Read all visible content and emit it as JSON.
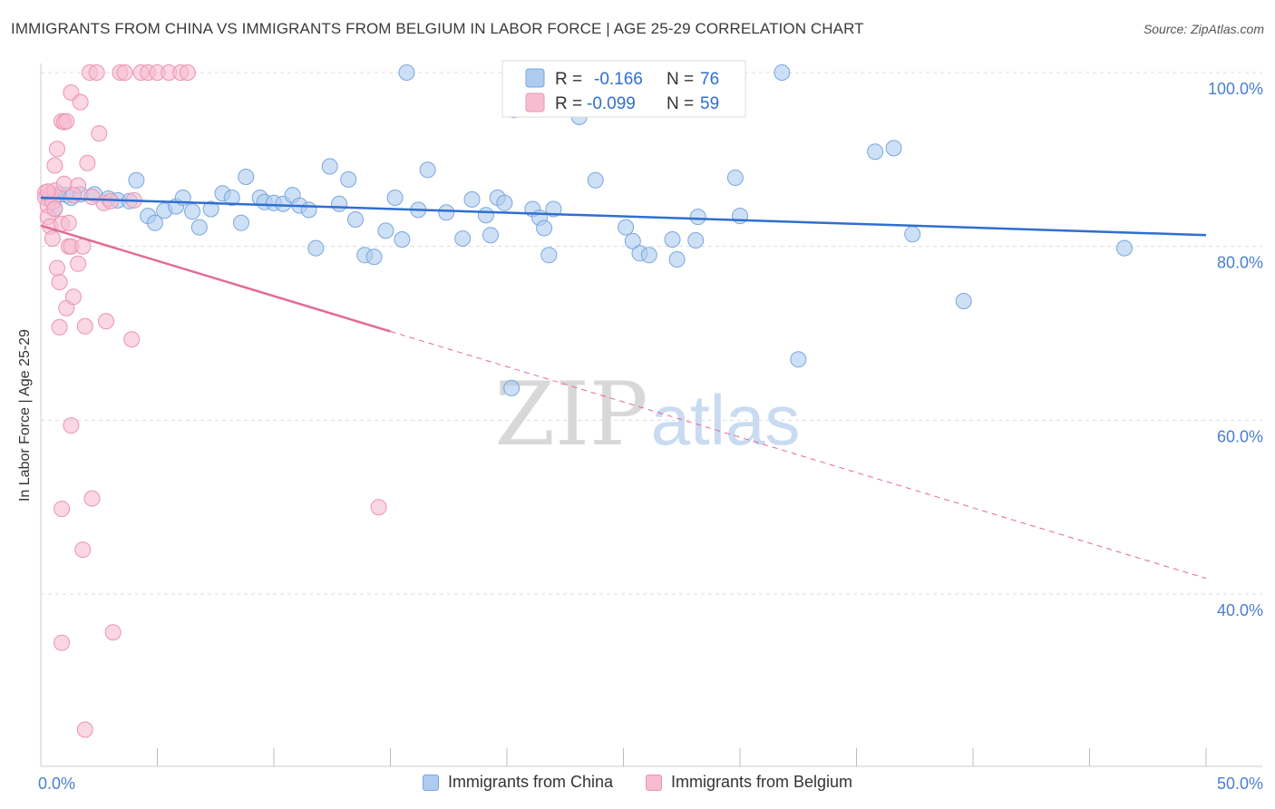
{
  "header": {
    "title": "IMMIGRANTS FROM CHINA VS IMMIGRANTS FROM BELGIUM IN LABOR FORCE | AGE 25-29 CORRELATION CHART",
    "source": "Source: ZipAtlas.com"
  },
  "watermark": {
    "zip": "ZIP",
    "atlas": "atlas"
  },
  "legend": {
    "china": {
      "r_label": "R =",
      "r_value": "-0.166",
      "n_label": "N =",
      "n_value": "76"
    },
    "belgium": {
      "r_label": "R =",
      "r_value": "-0.099",
      "n_label": "N =",
      "n_value": "59"
    }
  },
  "bottom_legend": {
    "china": "Immigrants from China",
    "belgium": "Immigrants from Belgium"
  },
  "colors": {
    "china_fill": "#aecbf0",
    "china_stroke": "#7aa7dd",
    "china_line": "#2f6fcf",
    "belgium_fill": "#f7bcd0",
    "belgium_stroke": "#ec93b1",
    "belgium_line": "#e36a95",
    "tick_label": "#4a7fd0",
    "grid": "#dcdcdc"
  },
  "chart_data": {
    "type": "scatter",
    "ylabel": "In Labor Force | Age 25-29",
    "xlim": [
      0,
      50
    ],
    "ylim": [
      20,
      102
    ],
    "x_tick_labels": [
      {
        "value": 0,
        "label": "0.0%"
      },
      {
        "value": 50,
        "label": "50.0%"
      }
    ],
    "y_tick_labels": [
      {
        "value": 100,
        "label": "100.0%"
      },
      {
        "value": 80,
        "label": "80.0%"
      },
      {
        "value": 60,
        "label": "60.0%"
      },
      {
        "value": 40,
        "label": "40.0%"
      }
    ],
    "grid": true,
    "series": [
      {
        "name": "Immigrants from China",
        "key": "china",
        "trend": {
          "x": [
            0,
            50
          ],
          "y": [
            85.6,
            81.3
          ],
          "dashed_from": null
        },
        "points": [
          [
            0.4,
            85.4
          ],
          [
            0.6,
            84.4
          ],
          [
            0.8,
            86.0
          ],
          [
            1.1,
            85.9
          ],
          [
            1.3,
            85.6
          ],
          [
            1.7,
            86.0
          ],
          [
            2.3,
            86.0
          ],
          [
            2.9,
            85.5
          ],
          [
            3.3,
            85.3
          ],
          [
            3.8,
            85.2
          ],
          [
            4.1,
            87.6
          ],
          [
            4.6,
            83.5
          ],
          [
            4.9,
            82.7
          ],
          [
            5.3,
            84.1
          ],
          [
            5.8,
            84.6
          ],
          [
            6.1,
            85.6
          ],
          [
            6.5,
            84.0
          ],
          [
            6.8,
            82.2
          ],
          [
            7.3,
            84.3
          ],
          [
            7.8,
            86.1
          ],
          [
            8.2,
            85.6
          ],
          [
            8.6,
            82.7
          ],
          [
            8.8,
            88.0
          ],
          [
            9.4,
            85.6
          ],
          [
            9.6,
            85.1
          ],
          [
            10.0,
            85.0
          ],
          [
            10.4,
            84.9
          ],
          [
            10.8,
            85.9
          ],
          [
            11.1,
            84.7
          ],
          [
            11.5,
            84.2
          ],
          [
            11.8,
            79.8
          ],
          [
            12.4,
            89.2
          ],
          [
            12.8,
            84.9
          ],
          [
            13.2,
            87.7
          ],
          [
            13.5,
            83.1
          ],
          [
            13.9,
            79.0
          ],
          [
            14.3,
            78.8
          ],
          [
            14.8,
            81.8
          ],
          [
            15.2,
            85.6
          ],
          [
            15.5,
            80.8
          ],
          [
            15.7,
            100.0
          ],
          [
            16.2,
            84.2
          ],
          [
            16.6,
            88.8
          ],
          [
            17.4,
            83.9
          ],
          [
            18.1,
            80.9
          ],
          [
            18.5,
            85.4
          ],
          [
            19.1,
            83.6
          ],
          [
            19.3,
            81.3
          ],
          [
            19.6,
            85.6
          ],
          [
            19.9,
            85.0
          ],
          [
            20.3,
            95.7
          ],
          [
            21.1,
            84.3
          ],
          [
            21.4,
            83.3
          ],
          [
            21.6,
            82.1
          ],
          [
            21.8,
            79.0
          ],
          [
            22.0,
            84.3
          ],
          [
            23.1,
            94.9
          ],
          [
            23.8,
            87.6
          ],
          [
            25.1,
            82.2
          ],
          [
            25.4,
            80.6
          ],
          [
            25.7,
            79.2
          ],
          [
            26.1,
            79.0
          ],
          [
            27.1,
            80.8
          ],
          [
            27.3,
            78.5
          ],
          [
            28.1,
            80.7
          ],
          [
            28.2,
            83.4
          ],
          [
            29.8,
            87.9
          ],
          [
            30.0,
            83.5
          ],
          [
            31.8,
            100.0
          ],
          [
            32.5,
            67.0
          ],
          [
            35.8,
            90.9
          ],
          [
            36.6,
            91.3
          ],
          [
            37.4,
            81.4
          ],
          [
            39.6,
            73.7
          ],
          [
            46.5,
            79.8
          ],
          [
            20.2,
            63.7
          ]
        ]
      },
      {
        "name": "Immigrants from Belgium",
        "key": "belgium",
        "trend": {
          "x": [
            0,
            50
          ],
          "y": [
            82.4,
            41.8
          ],
          "dashed_from": 15.0
        },
        "points": [
          [
            0.2,
            86.2
          ],
          [
            0.2,
            85.6
          ],
          [
            0.3,
            84.7
          ],
          [
            0.3,
            83.4
          ],
          [
            0.4,
            82.3
          ],
          [
            0.4,
            86.0
          ],
          [
            0.5,
            85.1
          ],
          [
            0.5,
            80.9
          ],
          [
            0.6,
            86.4
          ],
          [
            0.6,
            84.3
          ],
          [
            0.6,
            89.3
          ],
          [
            0.7,
            91.2
          ],
          [
            0.7,
            77.5
          ],
          [
            0.8,
            75.9
          ],
          [
            0.8,
            70.7
          ],
          [
            0.9,
            94.4
          ],
          [
            0.9,
            82.6
          ],
          [
            0.9,
            49.8
          ],
          [
            1.0,
            94.3
          ],
          [
            1.0,
            87.2
          ],
          [
            1.1,
            94.4
          ],
          [
            1.1,
            72.9
          ],
          [
            1.2,
            80.0
          ],
          [
            1.2,
            82.7
          ],
          [
            1.3,
            80.0
          ],
          [
            1.3,
            59.4
          ],
          [
            1.3,
            97.7
          ],
          [
            1.4,
            74.2
          ],
          [
            1.6,
            87.0
          ],
          [
            1.6,
            78.0
          ],
          [
            1.7,
            96.6
          ],
          [
            1.8,
            80.0
          ],
          [
            1.8,
            45.1
          ],
          [
            1.9,
            70.8
          ],
          [
            1.9,
            24.4
          ],
          [
            2.0,
            89.6
          ],
          [
            2.1,
            100.0
          ],
          [
            2.2,
            51.0
          ],
          [
            2.4,
            100.0
          ],
          [
            2.5,
            93.0
          ],
          [
            2.7,
            85.0
          ],
          [
            2.8,
            71.4
          ],
          [
            3.1,
            35.6
          ],
          [
            3.4,
            100.0
          ],
          [
            3.6,
            100.0
          ],
          [
            3.9,
            69.3
          ],
          [
            4.0,
            85.3
          ],
          [
            4.3,
            100.0
          ],
          [
            4.6,
            100.0
          ],
          [
            5.0,
            100.0
          ],
          [
            5.5,
            100.0
          ],
          [
            6.0,
            100.0
          ],
          [
            6.3,
            100.0
          ],
          [
            14.5,
            50.0
          ],
          [
            1.4,
            85.9
          ],
          [
            2.2,
            85.7
          ],
          [
            3.0,
            85.2
          ],
          [
            0.9,
            34.4
          ],
          [
            0.3,
            86.3
          ]
        ]
      }
    ]
  }
}
